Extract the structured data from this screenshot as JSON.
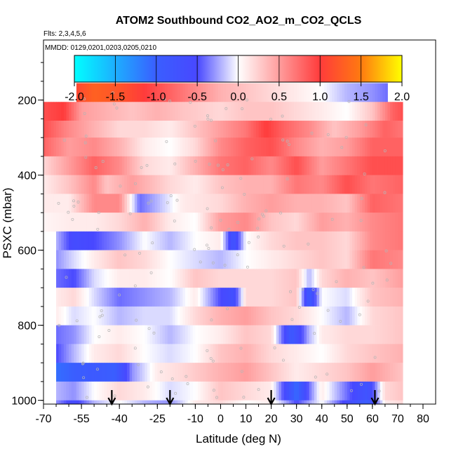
{
  "chart_data": {
    "type": "heatmap",
    "title": "ATOM2 Southbound CO2_AO2_m_CO2_QCLS",
    "flights_label": "Flts: 2,3,4,5,6",
    "dates_label": "MMDD: 0129,0201,0203,0205,0210",
    "xlabel": "Latitude (deg N)",
    "ylabel": "PSXC (mbar)",
    "xlim": [
      -70,
      85
    ],
    "ylim": [
      1010,
      40
    ],
    "x_ticks": [
      -70,
      -55,
      -40,
      -25,
      -10,
      0,
      10,
      20,
      30,
      40,
      50,
      60,
      70,
      80
    ],
    "y_ticks": [
      200,
      400,
      600,
      800,
      1000
    ],
    "colorbar": {
      "min": -2.0,
      "max": 2.0,
      "ticks": [
        "-2.0",
        "-1.5",
        "-1.0",
        "-0.5",
        "0.0",
        "0.5",
        "1.0",
        "1.5",
        "2.0"
      ]
    },
    "arrow_latitudes": [
      -43,
      -20,
      20,
      61
    ],
    "levels": [
      {
        "p_top": 155,
        "p_bot": 205,
        "lat_min": -57,
        "lat_max": 66,
        "knots": [
          [
            -57,
            1.1
          ],
          [
            -50,
            1.3
          ],
          [
            -40,
            1.2
          ],
          [
            -30,
            1.0
          ],
          [
            -20,
            0.8
          ],
          [
            -10,
            0.6
          ],
          [
            0,
            0.4
          ],
          [
            10,
            0.3
          ],
          [
            20,
            0.2
          ],
          [
            30,
            0.1
          ],
          [
            40,
            0.0
          ],
          [
            50,
            -0.2
          ],
          [
            60,
            -0.3
          ],
          [
            66,
            -0.4
          ]
        ]
      },
      {
        "p_top": 205,
        "p_bot": 255,
        "lat_min": -70,
        "lat_max": 72,
        "knots": [
          [
            -70,
            0.9
          ],
          [
            -62,
            1.0
          ],
          [
            -55,
            0.5
          ],
          [
            -45,
            0.4
          ],
          [
            -35,
            0.3
          ],
          [
            -25,
            0.4
          ],
          [
            -15,
            0.3
          ],
          [
            0,
            0.2
          ],
          [
            10,
            0.3
          ],
          [
            20,
            0.3
          ],
          [
            30,
            0.2
          ],
          [
            40,
            0.1
          ],
          [
            50,
            0.0
          ],
          [
            60,
            0.3
          ],
          [
            68,
            0.8
          ],
          [
            72,
            0.9
          ]
        ]
      },
      {
        "p_top": 255,
        "p_bot": 300,
        "lat_min": -70,
        "lat_max": 72,
        "knots": [
          [
            -70,
            0.9
          ],
          [
            -60,
            0.6
          ],
          [
            -50,
            0.4
          ],
          [
            -40,
            0.2
          ],
          [
            -30,
            0.2
          ],
          [
            -20,
            0.1
          ],
          [
            -10,
            0.3
          ],
          [
            0,
            0.5
          ],
          [
            10,
            0.7
          ],
          [
            18,
            1.0
          ],
          [
            25,
            0.8
          ],
          [
            35,
            0.6
          ],
          [
            45,
            0.3
          ],
          [
            55,
            0.5
          ],
          [
            65,
            0.8
          ],
          [
            72,
            0.7
          ]
        ]
      },
      {
        "p_top": 300,
        "p_bot": 350,
        "lat_min": -70,
        "lat_max": 72,
        "knots": [
          [
            -70,
            0.8
          ],
          [
            -60,
            0.5
          ],
          [
            -50,
            0.6
          ],
          [
            -40,
            0.4
          ],
          [
            -30,
            0.1
          ],
          [
            -20,
            0.0
          ],
          [
            -10,
            0.2
          ],
          [
            0,
            0.6
          ],
          [
            10,
            0.8
          ],
          [
            20,
            0.9
          ],
          [
            30,
            0.6
          ],
          [
            40,
            0.4
          ],
          [
            50,
            0.5
          ],
          [
            60,
            0.8
          ],
          [
            72,
            0.8
          ]
        ]
      },
      {
        "p_top": 350,
        "p_bot": 400,
        "lat_min": -70,
        "lat_max": 72,
        "knots": [
          [
            -70,
            0.2
          ],
          [
            -60,
            0.5
          ],
          [
            -50,
            0.8
          ],
          [
            -40,
            0.6
          ],
          [
            -30,
            0.2
          ],
          [
            -20,
            0.1
          ],
          [
            -10,
            0.4
          ],
          [
            0,
            0.7
          ],
          [
            10,
            0.8
          ],
          [
            20,
            0.6
          ],
          [
            30,
            0.9
          ],
          [
            40,
            0.5
          ],
          [
            50,
            0.7
          ],
          [
            60,
            0.9
          ],
          [
            72,
            0.9
          ]
        ]
      },
      {
        "p_top": 400,
        "p_bot": 450,
        "lat_min": -70,
        "lat_max": 72,
        "knots": [
          [
            -70,
            0.1
          ],
          [
            -60,
            0.3
          ],
          [
            -50,
            0.6
          ],
          [
            -45,
            0.3
          ],
          [
            -35,
            0.5
          ],
          [
            -20,
            0.2
          ],
          [
            -10,
            0.1
          ],
          [
            0,
            0.3
          ],
          [
            10,
            0.4
          ],
          [
            20,
            0.4
          ],
          [
            30,
            0.7
          ],
          [
            40,
            0.6
          ],
          [
            50,
            0.9
          ],
          [
            60,
            0.7
          ],
          [
            72,
            0.8
          ]
        ]
      },
      {
        "p_top": 450,
        "p_bot": 500,
        "lat_min": -70,
        "lat_max": 72,
        "knots": [
          [
            -70,
            0.1
          ],
          [
            -60,
            0.1
          ],
          [
            -50,
            0.6
          ],
          [
            -40,
            0.6
          ],
          [
            -32,
            -0.4
          ],
          [
            -25,
            -0.2
          ],
          [
            -15,
            0.1
          ],
          [
            0,
            0.2
          ],
          [
            10,
            0.4
          ],
          [
            20,
            0.5
          ],
          [
            30,
            0.4
          ],
          [
            40,
            0.4
          ],
          [
            50,
            0.3
          ],
          [
            60,
            0.8
          ],
          [
            72,
            0.7
          ]
        ]
      },
      {
        "p_top": 500,
        "p_bot": 550,
        "lat_min": -70,
        "lat_max": 72,
        "knots": [
          [
            -70,
            0.05
          ],
          [
            -60,
            0.1
          ],
          [
            -50,
            0.1
          ],
          [
            -40,
            0.2
          ],
          [
            -30,
            0.4
          ],
          [
            -20,
            0.1
          ],
          [
            -10,
            0.0
          ],
          [
            0,
            0.5
          ],
          [
            10,
            0.6
          ],
          [
            20,
            0.3
          ],
          [
            30,
            0.2
          ],
          [
            40,
            0.5
          ],
          [
            50,
            0.4
          ],
          [
            60,
            0.6
          ],
          [
            72,
            0.7
          ]
        ]
      },
      {
        "p_top": 550,
        "p_bot": 600,
        "lat_min": -65,
        "lat_max": 72,
        "knots": [
          [
            -65,
            -0.2
          ],
          [
            -58,
            -0.6
          ],
          [
            -50,
            -0.5
          ],
          [
            -40,
            -0.3
          ],
          [
            -30,
            0.0
          ],
          [
            -20,
            -0.2
          ],
          [
            -10,
            0.0
          ],
          [
            0,
            0.1
          ],
          [
            5,
            -0.8
          ],
          [
            10,
            0.0
          ],
          [
            20,
            0.2
          ],
          [
            30,
            0.3
          ],
          [
            40,
            0.3
          ],
          [
            50,
            0.2
          ],
          [
            60,
            0.6
          ],
          [
            72,
            0.7
          ]
        ]
      },
      {
        "p_top": 600,
        "p_bot": 650,
        "lat_min": -65,
        "lat_max": 72,
        "knots": [
          [
            -65,
            -0.3
          ],
          [
            -58,
            -0.1
          ],
          [
            -50,
            0.1
          ],
          [
            -40,
            0.3
          ],
          [
            -30,
            0.2
          ],
          [
            -20,
            0.0
          ],
          [
            -10,
            -0.1
          ],
          [
            0,
            -0.2
          ],
          [
            10,
            0.0
          ],
          [
            20,
            0.1
          ],
          [
            30,
            0.2
          ],
          [
            40,
            0.3
          ],
          [
            50,
            0.2
          ],
          [
            60,
            0.7
          ],
          [
            72,
            0.6
          ]
        ]
      },
      {
        "p_top": 650,
        "p_bot": 700,
        "lat_min": -65,
        "lat_max": 72,
        "knots": [
          [
            -65,
            -0.4
          ],
          [
            -58,
            -0.5
          ],
          [
            -50,
            -0.1
          ],
          [
            -40,
            0.1
          ],
          [
            -30,
            0.1
          ],
          [
            -20,
            0.0
          ],
          [
            -10,
            0.3
          ],
          [
            0,
            0.2
          ],
          [
            10,
            0.2
          ],
          [
            20,
            0.2
          ],
          [
            30,
            0.3
          ],
          [
            35,
            -0.2
          ],
          [
            40,
            0.2
          ],
          [
            50,
            0.4
          ],
          [
            60,
            0.3
          ],
          [
            72,
            0.5
          ]
        ]
      },
      {
        "p_top": 700,
        "p_bot": 750,
        "lat_min": -65,
        "lat_max": 72,
        "knots": [
          [
            -65,
            0.1
          ],
          [
            -58,
            0.2
          ],
          [
            -50,
            -0.1
          ],
          [
            -40,
            -0.4
          ],
          [
            -30,
            -0.3
          ],
          [
            -20,
            -0.2
          ],
          [
            -10,
            0.1
          ],
          [
            0,
            -0.5
          ],
          [
            5,
            -0.7
          ],
          [
            10,
            0.2
          ],
          [
            20,
            0.2
          ],
          [
            30,
            0.3
          ],
          [
            35,
            -0.9
          ],
          [
            40,
            0.0
          ],
          [
            50,
            -0.1
          ],
          [
            60,
            0.3
          ],
          [
            72,
            0.4
          ]
        ]
      },
      {
        "p_top": 750,
        "p_bot": 800,
        "lat_min": -65,
        "lat_max": 72,
        "knots": [
          [
            -65,
            0.1
          ],
          [
            -58,
            -0.1
          ],
          [
            -50,
            0.0
          ],
          [
            -40,
            -0.2
          ],
          [
            -30,
            -0.1
          ],
          [
            -20,
            -0.1
          ],
          [
            -10,
            0.2
          ],
          [
            0,
            0.4
          ],
          [
            10,
            0.5
          ],
          [
            20,
            0.3
          ],
          [
            30,
            0.2
          ],
          [
            40,
            0.0
          ],
          [
            50,
            -0.2
          ],
          [
            60,
            0.2
          ],
          [
            72,
            0.3
          ]
        ]
      },
      {
        "p_top": 800,
        "p_bot": 850,
        "lat_min": -65,
        "lat_max": 72,
        "knots": [
          [
            -65,
            -0.4
          ],
          [
            -58,
            -0.3
          ],
          [
            -50,
            0.0
          ],
          [
            -40,
            0.1
          ],
          [
            -30,
            0.0
          ],
          [
            -20,
            -0.2
          ],
          [
            -10,
            0.0
          ],
          [
            0,
            0.1
          ],
          [
            10,
            0.3
          ],
          [
            20,
            0.2
          ],
          [
            28,
            -0.9
          ],
          [
            35,
            -0.2
          ],
          [
            40,
            0.1
          ],
          [
            50,
            0.2
          ],
          [
            60,
            0.2
          ],
          [
            72,
            0.3
          ]
        ]
      },
      {
        "p_top": 850,
        "p_bot": 900,
        "lat_min": -65,
        "lat_max": 72,
        "knots": [
          [
            -65,
            -0.5
          ],
          [
            -58,
            -0.2
          ],
          [
            -50,
            0.1
          ],
          [
            -40,
            0.2
          ],
          [
            -30,
            0.0
          ],
          [
            -20,
            -0.1
          ],
          [
            -10,
            0.0
          ],
          [
            0,
            0.3
          ],
          [
            10,
            0.4
          ],
          [
            20,
            0.2
          ],
          [
            30,
            0.1
          ],
          [
            40,
            0.0
          ],
          [
            50,
            0.2
          ],
          [
            60,
            0.3
          ],
          [
            72,
            0.4
          ]
        ]
      },
      {
        "p_top": 900,
        "p_bot": 950,
        "lat_min": -65,
        "lat_max": 72,
        "knots": [
          [
            -65,
            -1.1
          ],
          [
            -58,
            -1.0
          ],
          [
            -50,
            -0.9
          ],
          [
            -42,
            -1.0
          ],
          [
            -35,
            -0.3
          ],
          [
            -25,
            0.1
          ],
          [
            -15,
            0.2
          ],
          [
            0,
            0.4
          ],
          [
            10,
            0.5
          ],
          [
            20,
            0.3
          ],
          [
            30,
            0.1
          ],
          [
            40,
            0.2
          ],
          [
            50,
            0.3
          ],
          [
            60,
            0.5
          ],
          [
            72,
            0.3
          ]
        ]
      },
      {
        "p_top": 950,
        "p_bot": 1000,
        "lat_min": -65,
        "lat_max": 72,
        "knots": [
          [
            -65,
            -0.2
          ],
          [
            -58,
            -0.3
          ],
          [
            -50,
            0.0
          ],
          [
            -40,
            0.2
          ],
          [
            -30,
            0.1
          ],
          [
            -20,
            -0.1
          ],
          [
            -10,
            0.0
          ],
          [
            0,
            0.3
          ],
          [
            10,
            0.2
          ],
          [
            20,
            0.1
          ],
          [
            25,
            -0.5
          ],
          [
            30,
            -1.1
          ],
          [
            35,
            -0.4
          ],
          [
            40,
            0.1
          ],
          [
            50,
            -0.4
          ],
          [
            58,
            -0.8
          ],
          [
            65,
            0.2
          ],
          [
            72,
            0.3
          ]
        ]
      },
      {
        "p_top": 1000,
        "p_bot": 1010,
        "lat_min": -65,
        "lat_max": 72,
        "knots": [
          [
            -65,
            -0.3
          ],
          [
            -58,
            -0.6
          ],
          [
            -50,
            -0.2
          ],
          [
            -40,
            0.0
          ],
          [
            -30,
            -0.2
          ],
          [
            -20,
            -0.3
          ],
          [
            -10,
            0.1
          ],
          [
            0,
            0.2
          ],
          [
            10,
            0.0
          ],
          [
            20,
            0.1
          ],
          [
            30,
            -0.5
          ],
          [
            40,
            0.0
          ],
          [
            50,
            -0.6
          ],
          [
            58,
            -1.0
          ],
          [
            65,
            0.1
          ],
          [
            72,
            0.2
          ]
        ]
      }
    ]
  }
}
